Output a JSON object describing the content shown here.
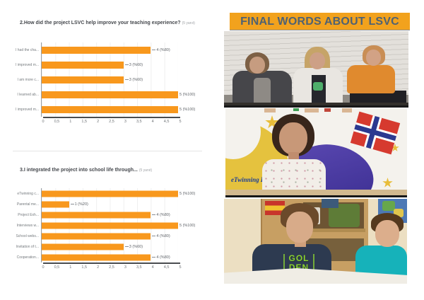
{
  "chart_data": [
    {
      "type": "bar",
      "orientation": "horizontal",
      "title": "2.How did the project LSVC help improve your teaching experience?",
      "responses_note": "(5 yanıt)",
      "categories": [
        "I had the cha...",
        "I improved m...",
        "I am more c...",
        "I learned ab...",
        "I improved m..."
      ],
      "values": [
        4,
        3,
        3,
        5,
        5
      ],
      "value_labels": [
        "4 (%80)",
        "3 (%60)",
        "3 (%60)",
        "5 (%100)",
        "5 (%100)"
      ],
      "xlim": [
        0,
        5
      ],
      "xtick_labels": [
        "0",
        "0,5",
        "1",
        "1,5",
        "2",
        "2,5",
        "3",
        "3,5",
        "4",
        "4,5",
        "5"
      ],
      "bar_color": "#F8981D",
      "legend": "none",
      "grid": true
    },
    {
      "type": "bar",
      "orientation": "horizontal",
      "title": "3.I integrated the project into school life through...",
      "responses_note": "(5 yanıt)",
      "categories": [
        "eTwinning c...",
        "Parental me...",
        "Project Exh...",
        "Interviews w...",
        "School webs...",
        "Invitation of t...",
        "Cooperation..."
      ],
      "values": [
        5,
        1,
        4,
        5,
        4,
        3,
        4
      ],
      "value_labels": [
        "5 (%100)",
        "1 (%20)",
        "4 (%80)",
        "5 (%100)",
        "4 (%80)",
        "3 (%60)",
        "4 (%80)"
      ],
      "xlim": [
        0,
        5
      ],
      "xtick_labels": [
        "0",
        "0,5",
        "1",
        "1,5",
        "2",
        "2,5",
        "3",
        "3,5",
        "4",
        "4,5",
        "5"
      ],
      "bar_color": "#F8981D",
      "legend": "none",
      "grid": true
    }
  ],
  "right_panel": {
    "header": "FINAL WORDS ABOUT LSVC",
    "colors": {
      "header_bg": "#F2A21D",
      "header_text": "#4F6273",
      "bar_orange": "#F8981D"
    },
    "photos": [
      {
        "name": "three-students-brick-wall",
        "visible_text": ""
      },
      {
        "name": "student-etwinning-poster",
        "visible_text": "eTwinning F"
      },
      {
        "name": "two-students-classroom",
        "shirt_text": [
          "GOL",
          "DEN"
        ]
      }
    ]
  }
}
